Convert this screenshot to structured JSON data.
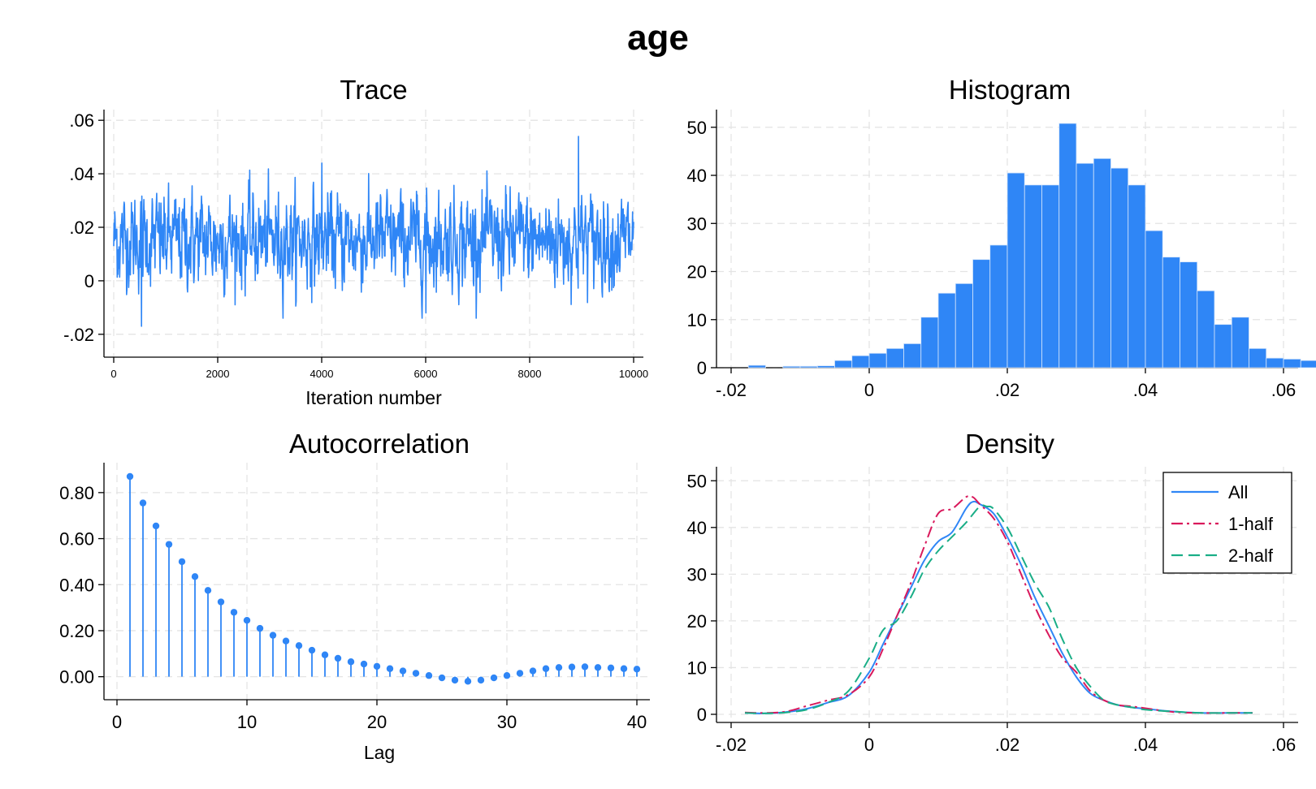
{
  "title": "age",
  "colors": {
    "series": "#2f86f6",
    "all": "#2f86f6",
    "half1": "#d9195c",
    "half2": "#1aae87",
    "grid": "#e4e4e4"
  },
  "chart_data": [
    {
      "type": "line",
      "title": "Trace",
      "xlabel": "Iteration number",
      "ylabel": "",
      "xlim": [
        0,
        10000
      ],
      "ylim": [
        -0.024,
        0.064
      ],
      "xticks": [
        "0",
        "2000",
        "4000",
        "6000",
        "8000",
        "10000"
      ],
      "yticks": [
        "-.02",
        "0",
        ".02",
        ".04",
        ".06"
      ],
      "samples": 10000,
      "mean": 0.0153,
      "sd": 0.0085,
      "range_observed": [
        -0.017,
        0.054
      ],
      "grid": true
    },
    {
      "type": "bar",
      "title": "Histogram",
      "xlim": [
        -0.02,
        0.06
      ],
      "ylim": [
        0,
        53
      ],
      "xticks": [
        "-.02",
        "0",
        ".02",
        ".04",
        ".06"
      ],
      "yticks": [
        "0",
        "10",
        "20",
        "30",
        "40",
        "50"
      ],
      "bin_start": -0.0175,
      "bin_width": 0.0025,
      "values": [
        0.5,
        0,
        0.3,
        0.3,
        0.4,
        1.5,
        2.5,
        3,
        4,
        5,
        10.5,
        15.5,
        17.5,
        22.5,
        25.5,
        40.5,
        38,
        38,
        50.8,
        42.5,
        43.5,
        41.5,
        38,
        28.5,
        23,
        22,
        16,
        9,
        10.5,
        4,
        2,
        1.8,
        1.5,
        0.4,
        0.2,
        0.2,
        0.2,
        0.2,
        0.2
      ],
      "grid": true
    },
    {
      "type": "scatter",
      "title": "Autocorrelation",
      "xlabel": "Lag",
      "xlim": [
        -1,
        41
      ],
      "ylim": [
        -0.1,
        0.93
      ],
      "xticks": [
        "0",
        "10",
        "20",
        "30",
        "40"
      ],
      "yticks": [
        "0.00",
        "0.20",
        "0.40",
        "0.60",
        "0.80"
      ],
      "x": [
        1,
        2,
        3,
        4,
        5,
        6,
        7,
        8,
        9,
        10,
        11,
        12,
        13,
        14,
        15,
        16,
        17,
        18,
        19,
        20,
        21,
        22,
        23,
        24,
        25,
        26,
        27,
        28,
        29,
        30,
        31,
        32,
        33,
        34,
        35,
        36,
        37,
        38,
        39,
        40
      ],
      "values": [
        0.87,
        0.755,
        0.655,
        0.575,
        0.5,
        0.435,
        0.375,
        0.325,
        0.28,
        0.245,
        0.21,
        0.18,
        0.155,
        0.135,
        0.115,
        0.095,
        0.08,
        0.065,
        0.055,
        0.045,
        0.035,
        0.025,
        0.015,
        0.005,
        -0.005,
        -0.015,
        -0.02,
        -0.015,
        -0.005,
        0.005,
        0.015,
        0.025,
        0.035,
        0.04,
        0.042,
        0.043,
        0.04,
        0.038,
        0.035,
        0.033
      ],
      "grid": true
    },
    {
      "type": "line",
      "title": "Density",
      "xlim": [
        -0.02,
        0.06
      ],
      "ylim": [
        0,
        53
      ],
      "xticks": [
        "-.02",
        "0",
        ".02",
        ".04",
        ".06"
      ],
      "yticks": [
        "0",
        "10",
        "20",
        "30",
        "40",
        "50"
      ],
      "legend_position": "top-right",
      "series": [
        {
          "name": "All",
          "x": [
            -0.018,
            -0.015,
            -0.012,
            -0.009,
            -0.006,
            -0.003,
            0,
            0.002,
            0.004,
            0.006,
            0.008,
            0.01,
            0.012,
            0.014,
            0.015,
            0.016,
            0.018,
            0.02,
            0.022,
            0.024,
            0.026,
            0.028,
            0.03,
            0.032,
            0.034,
            0.036,
            0.038,
            0.04,
            0.044,
            0.048,
            0.052,
            0.0555
          ],
          "values": [
            0.3,
            0.2,
            0.5,
            1.2,
            2.5,
            4,
            9,
            15,
            21,
            27,
            33,
            37,
            39,
            44,
            45.5,
            45,
            43,
            38,
            32,
            25,
            19,
            13,
            8,
            4.5,
            3,
            2,
            1.5,
            1.2,
            0.6,
            0.3,
            0.3,
            0.3
          ]
        },
        {
          "name": "1-half",
          "x": [
            -0.018,
            -0.015,
            -0.012,
            -0.009,
            -0.006,
            -0.003,
            0,
            0.002,
            0.004,
            0.006,
            0.008,
            0.01,
            0.012,
            0.014,
            0.015,
            0.016,
            0.018,
            0.02,
            0.022,
            0.024,
            0.026,
            0.028,
            0.03,
            0.032,
            0.034,
            0.036,
            0.038,
            0.04,
            0.044,
            0.048,
            0.052,
            0.0555
          ],
          "values": [
            0.4,
            0.3,
            0.6,
            1.8,
            3,
            4.2,
            8,
            14,
            21,
            28,
            36,
            43,
            44,
            46.5,
            46.5,
            45,
            42,
            37,
            30,
            23,
            17,
            12,
            9,
            5,
            3,
            2,
            1.7,
            1.3,
            0.5,
            0.3,
            0.3,
            0.3
          ]
        },
        {
          "name": "2-half",
          "x": [
            -0.018,
            -0.015,
            -0.012,
            -0.009,
            -0.006,
            -0.003,
            0,
            0.002,
            0.004,
            0.006,
            0.008,
            0.01,
            0.012,
            0.014,
            0.016,
            0.017,
            0.018,
            0.02,
            0.022,
            0.024,
            0.026,
            0.028,
            0.03,
            0.032,
            0.034,
            0.036,
            0.038,
            0.04,
            0.044,
            0.048,
            0.052,
            0.0555
          ],
          "values": [
            0.3,
            0.2,
            0.4,
            1,
            2.5,
            5,
            12,
            18,
            20,
            25,
            31,
            35,
            38,
            41,
            44.5,
            44.5,
            44,
            40,
            34,
            28,
            23,
            16,
            10,
            6,
            3,
            2,
            1.5,
            1,
            0.6,
            0.3,
            0.3,
            0.3
          ]
        }
      ],
      "grid": true
    }
  ]
}
